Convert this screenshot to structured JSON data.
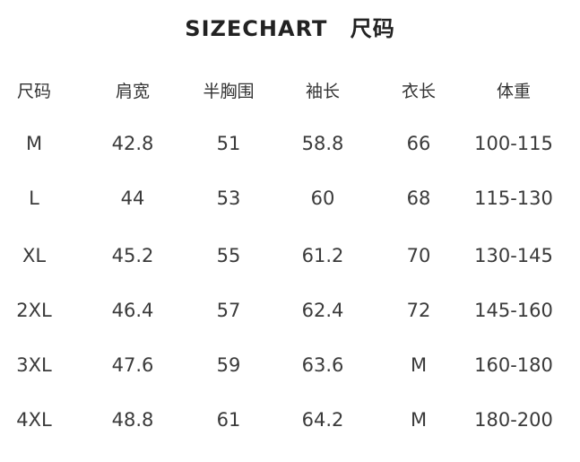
{
  "title": {
    "en": "SIZECHART",
    "zh": "尺码"
  },
  "table": {
    "headers": [
      "尺码",
      "肩宽",
      "半胸围",
      "袖长",
      "衣长",
      "体重"
    ],
    "rows": [
      [
        "M",
        "42.8",
        "51",
        "58.8",
        "66",
        "100-115"
      ],
      [
        "L",
        "44",
        "53",
        "60",
        "68",
        "115-130"
      ],
      [
        "XL",
        "45.2",
        "55",
        "61.2",
        "70",
        "130-145"
      ],
      [
        "2XL",
        "46.4",
        "57",
        "62.4",
        "72",
        "145-160"
      ],
      [
        "3XL",
        "47.6",
        "59",
        "63.6",
        "M",
        "160-180"
      ],
      [
        "4XL",
        "48.8",
        "61",
        "64.2",
        "M",
        "180-200"
      ]
    ]
  }
}
